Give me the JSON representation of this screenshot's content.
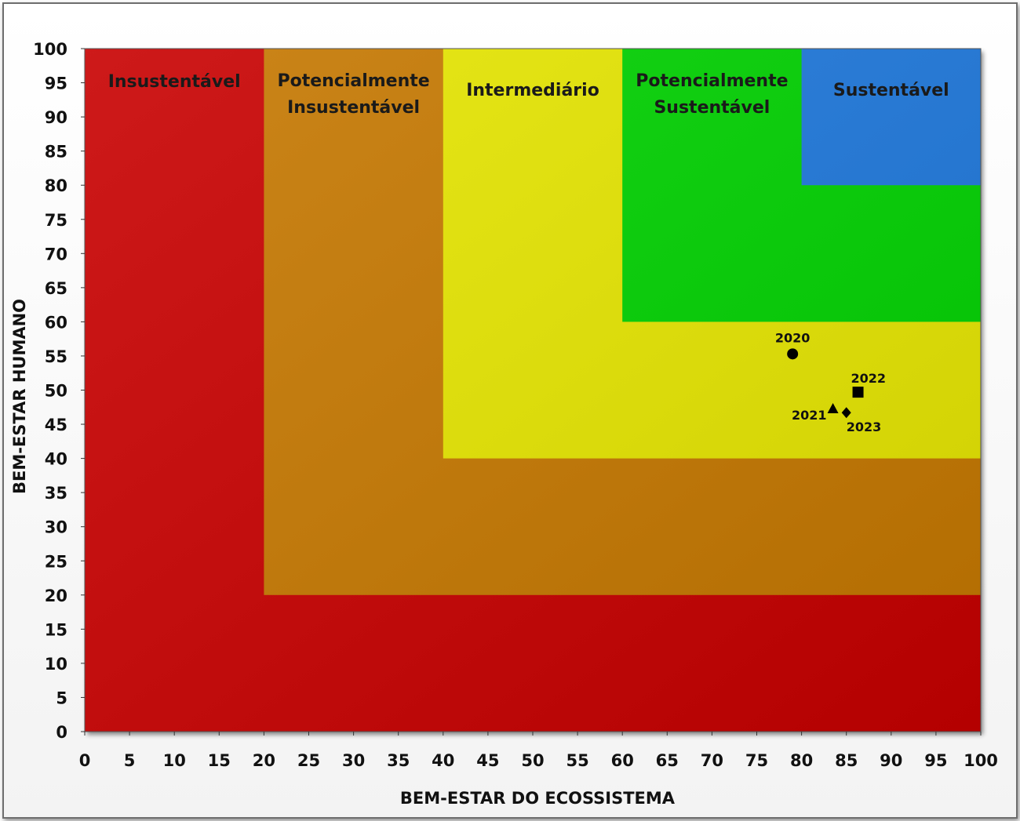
{
  "chart_data": {
    "type": "scatter",
    "title": "",
    "xlabel": "BEM-ESTAR DO ECOSSISTEMA",
    "ylabel": "BEM-ESTAR HUMANO",
    "xlim": [
      0,
      100
    ],
    "ylim": [
      0,
      100
    ],
    "xticks": [
      0,
      5,
      10,
      15,
      20,
      25,
      30,
      35,
      40,
      45,
      50,
      55,
      60,
      65,
      70,
      75,
      80,
      85,
      90,
      95,
      100
    ],
    "yticks": [
      0,
      5,
      10,
      15,
      20,
      25,
      30,
      35,
      40,
      45,
      50,
      55,
      60,
      65,
      70,
      75,
      80,
      85,
      90,
      95,
      100
    ],
    "grid": false,
    "zones": [
      {
        "name": "Insustentável",
        "lines": [
          "Insustentável"
        ],
        "min": 0,
        "color": "#c80000"
      },
      {
        "name": "Potencialmente Insustentável",
        "lines": [
          "Potencialmente",
          "Insustentável"
        ],
        "min": 20,
        "color": "#c67800"
      },
      {
        "name": "Intermediário",
        "lines": [
          "Intermediário"
        ],
        "min": 40,
        "color": "#e6e600"
      },
      {
        "name": "Potencialmente Sustentável",
        "lines": [
          "Potencialmente",
          "Sustentável"
        ],
        "min": 60,
        "color": "#00d200"
      },
      {
        "name": "Sustentável",
        "lines": [
          "Sustentável"
        ],
        "min": 80,
        "color": "#1e78dc"
      }
    ],
    "points": [
      {
        "label": "2020",
        "x": 79,
        "y": 55.3,
        "marker": "circle"
      },
      {
        "label": "2021",
        "x": 83.5,
        "y": 47.3,
        "marker": "triangle"
      },
      {
        "label": "2022",
        "x": 86.3,
        "y": 49.7,
        "marker": "square"
      },
      {
        "label": "2023",
        "x": 85,
        "y": 46.7,
        "marker": "diamond"
      }
    ]
  }
}
